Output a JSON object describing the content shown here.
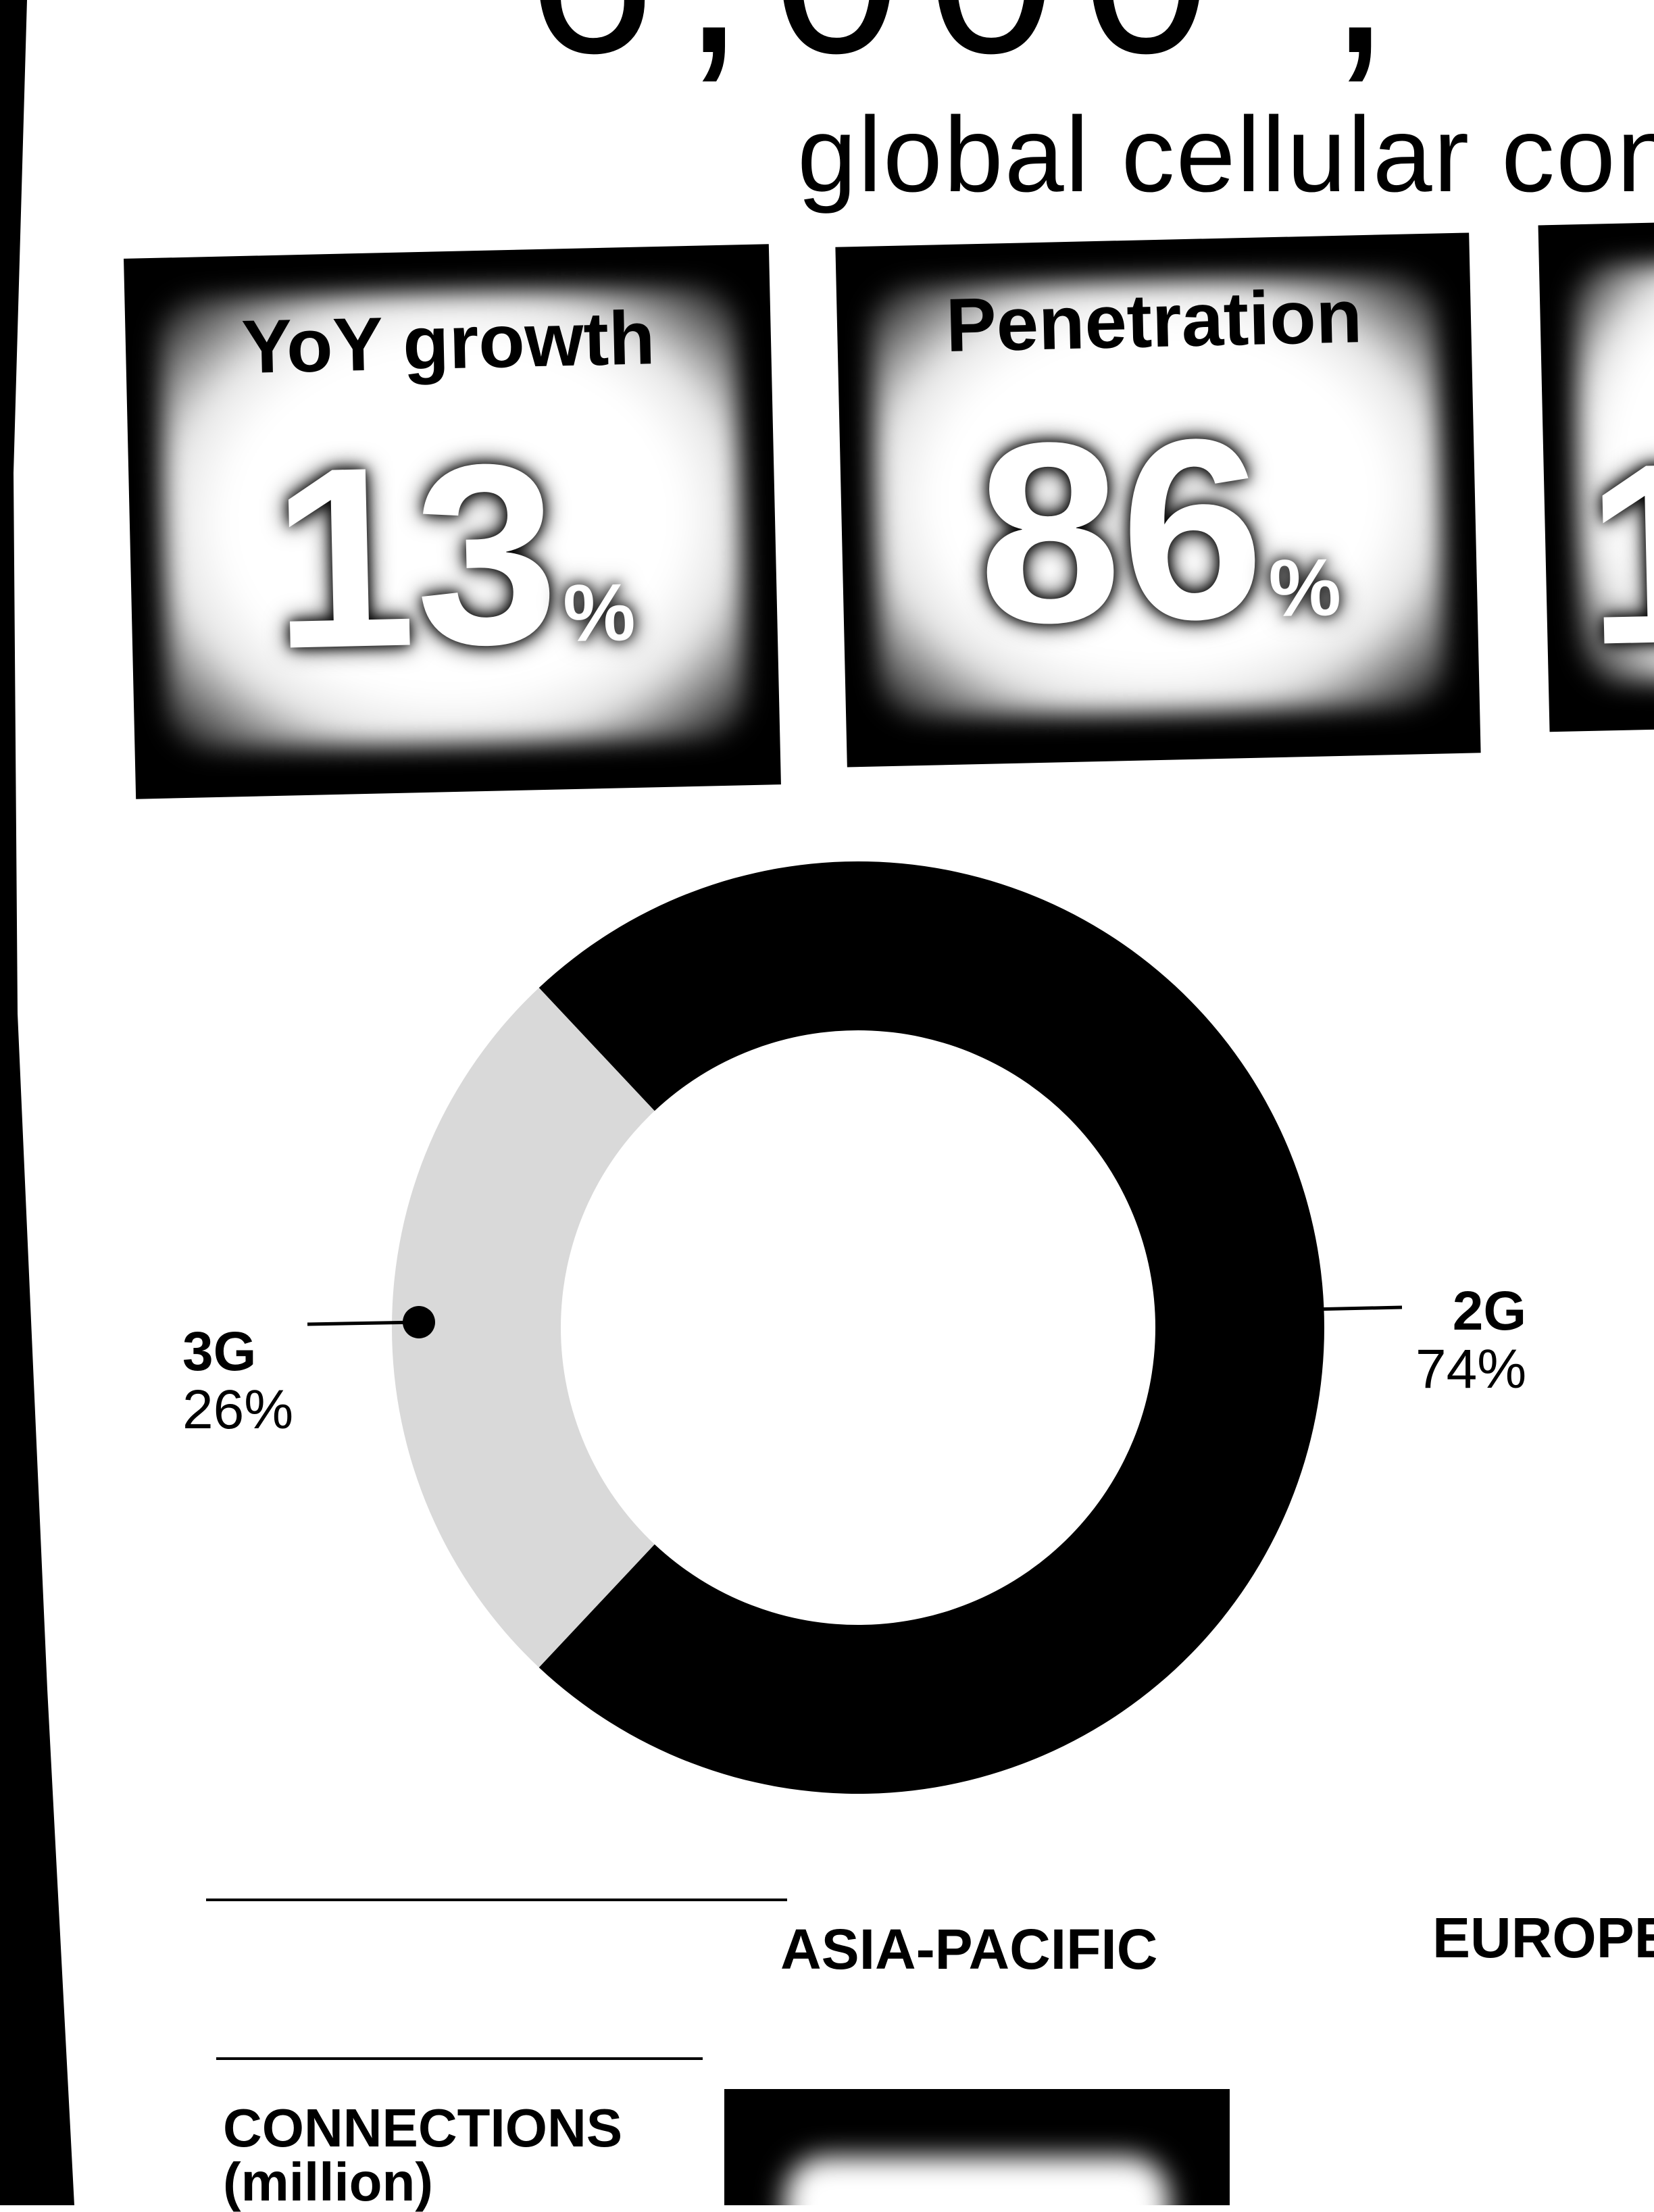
{
  "header": {
    "big_number_partial": "6,000 ,",
    "subtitle_partial": "global cellular con"
  },
  "stat_cards": [
    {
      "label": "YoY growth",
      "value": "13",
      "unit": "%"
    },
    {
      "label": "Penetration",
      "value": "86",
      "unit": "%"
    },
    {
      "label": "",
      "value": "1",
      "unit": ""
    }
  ],
  "chart_data": {
    "type": "pie",
    "style": "donut",
    "slices": [
      {
        "label": "2G",
        "value": 74,
        "value_text": "74%",
        "color": "#000000"
      },
      {
        "label": "3G",
        "value": 26,
        "value_text": "26%",
        "color": "#d9d9d9"
      }
    ]
  },
  "table": {
    "columns": [
      "ASIA-PACIFIC",
      "EUROPE"
    ],
    "row_label_line1": "CONNECTIONS",
    "row_label_line2": "(million)"
  },
  "colors": {
    "background": "#ffffff",
    "ink": "#000000",
    "light_segment": "#d9d9d9"
  }
}
